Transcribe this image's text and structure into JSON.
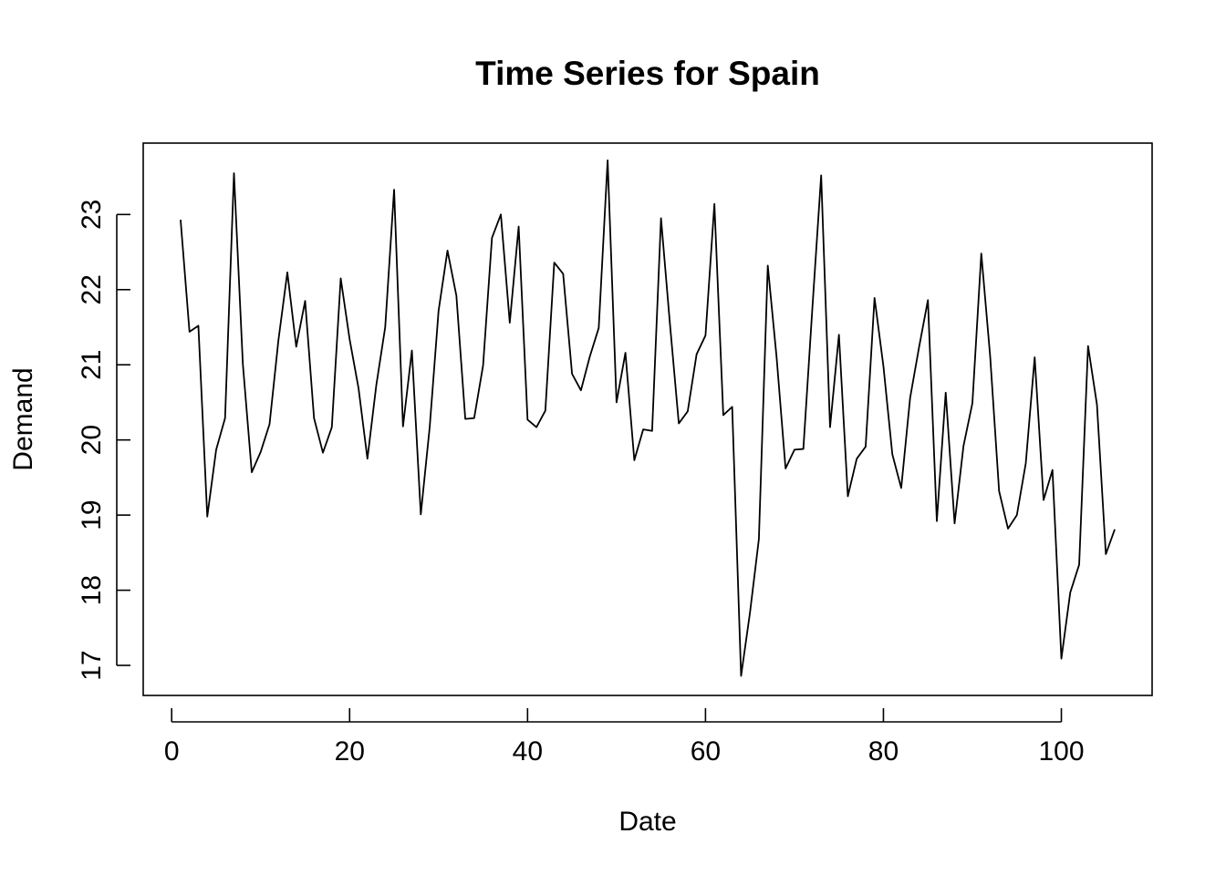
{
  "chart_data": {
    "type": "line",
    "title": "Time Series for Spain",
    "xlabel": "Date",
    "ylabel": "Demand",
    "xlim": [
      -3.2,
      110.2
    ],
    "ylim": [
      16.6,
      23.95
    ],
    "x_ticks": [
      0,
      20,
      40,
      60,
      80,
      100
    ],
    "y_ticks": [
      17,
      18,
      19,
      20,
      21,
      22,
      23
    ],
    "grid": false,
    "legend": "none",
    "line_color": "#000000",
    "series": [
      {
        "x": [
          1,
          2,
          3,
          4,
          5,
          6,
          7,
          8,
          9,
          10,
          11,
          12,
          13,
          14,
          15,
          16,
          17,
          18,
          19,
          20,
          21,
          22,
          23,
          24,
          25,
          26,
          27,
          28,
          29,
          30,
          31,
          32,
          33,
          34,
          35,
          36,
          37,
          38,
          39,
          40,
          41,
          42,
          43,
          44,
          45,
          46,
          47,
          48,
          49,
          50,
          51,
          52,
          53,
          54,
          55,
          56,
          57,
          58,
          59,
          60,
          61,
          62,
          63,
          64,
          65,
          66,
          67,
          68,
          69,
          70,
          71,
          72,
          73,
          74,
          75,
          76,
          77,
          78,
          79,
          80,
          81,
          82,
          83,
          84,
          85,
          86,
          87,
          88,
          89,
          90,
          91,
          92,
          93,
          94,
          95,
          96,
          97,
          98,
          99,
          100,
          101,
          102,
          103,
          104,
          105,
          106
        ],
        "values": [
          22.93,
          21.44,
          21.52,
          18.98,
          19.87,
          20.29,
          23.55,
          21.01,
          19.57,
          19.84,
          20.21,
          21.33,
          22.23,
          21.24,
          21.85,
          20.29,
          19.83,
          20.17,
          22.15,
          21.34,
          20.69,
          19.75,
          20.73,
          21.5,
          23.33,
          20.18,
          21.19,
          19.01,
          20.17,
          21.72,
          22.52,
          21.92,
          20.28,
          20.29,
          20.99,
          22.69,
          23.0,
          21.56,
          22.84,
          20.27,
          20.17,
          20.39,
          22.36,
          22.21,
          20.88,
          20.66,
          21.11,
          21.49,
          23.72,
          20.5,
          21.16,
          19.73,
          20.14,
          20.12,
          22.95,
          21.55,
          20.22,
          20.38,
          21.14,
          21.39,
          23.14,
          20.33,
          20.44,
          16.86,
          17.7,
          18.68,
          22.32,
          21.09,
          19.62,
          19.87,
          19.88,
          21.73,
          23.52,
          20.17,
          21.4,
          19.25,
          19.75,
          19.91,
          21.89,
          20.98,
          19.81,
          19.36,
          20.56,
          21.23,
          21.86,
          18.92,
          20.63,
          18.89,
          19.92,
          20.49,
          22.48,
          21.11,
          19.32,
          18.82,
          19.0,
          19.69,
          21.1,
          19.2,
          19.6,
          17.09,
          17.97,
          18.34,
          21.25,
          20.47,
          18.48,
          18.81
        ]
      }
    ]
  }
}
